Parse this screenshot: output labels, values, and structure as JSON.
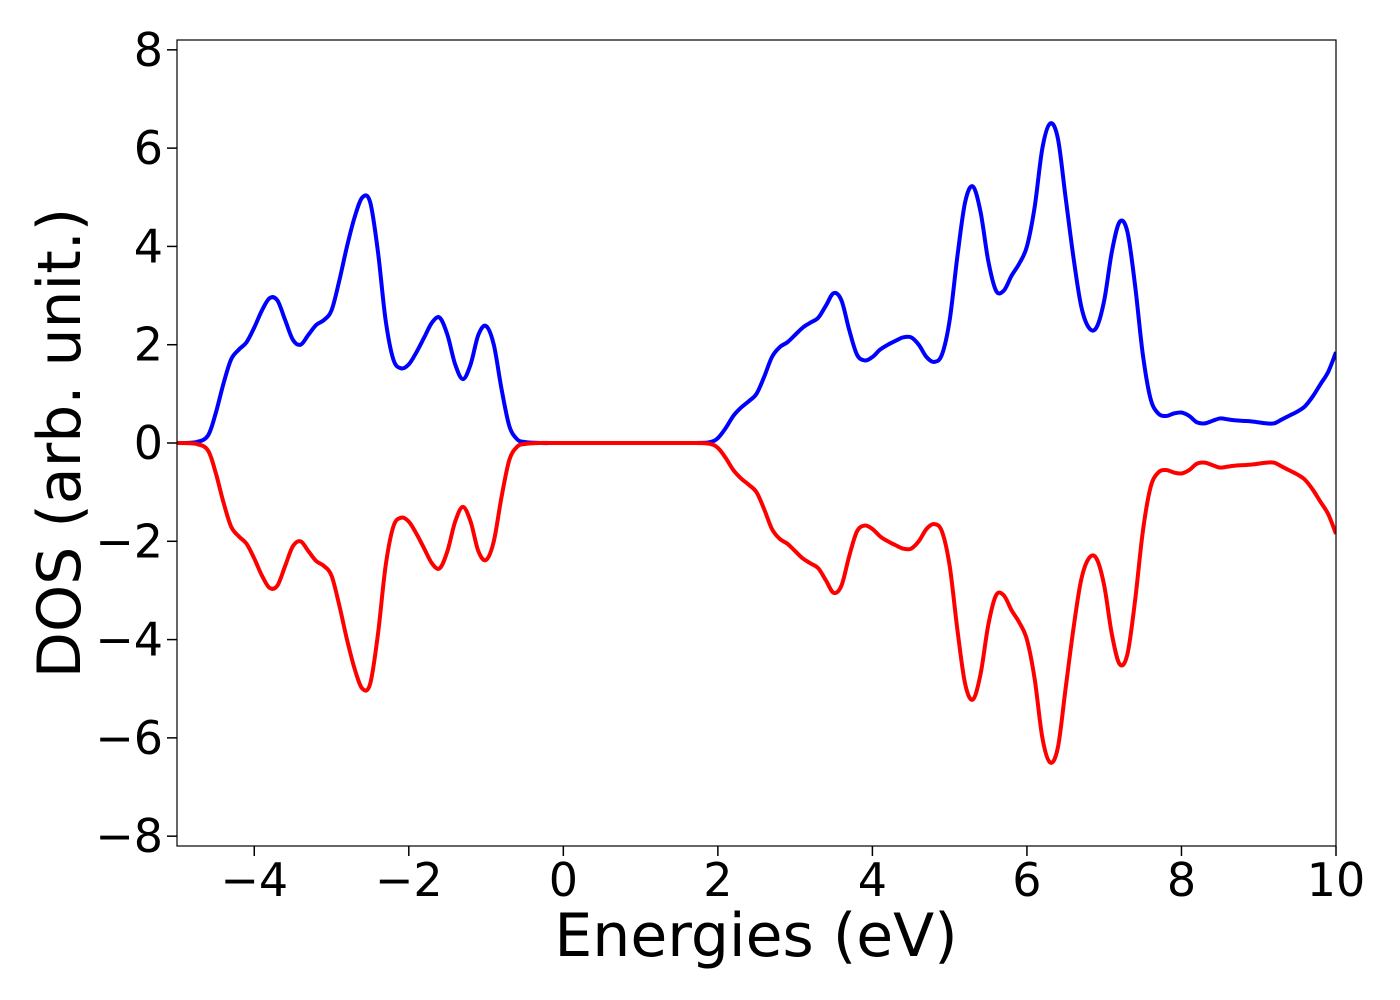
{
  "chart_data": {
    "type": "line",
    "title": "",
    "xlabel": "Energies (eV)",
    "ylabel": "DOS (arb. unit.)",
    "xlim": [
      -5,
      10
    ],
    "ylim": [
      -8.2,
      8.2
    ],
    "x_ticks": [
      -4,
      -2,
      0,
      2,
      4,
      6,
      8,
      10
    ],
    "x_tick_labels": [
      "−4",
      "−2",
      "0",
      "2",
      "4",
      "6",
      "8",
      "10"
    ],
    "y_ticks": [
      -8,
      -6,
      -4,
      -2,
      0,
      2,
      4,
      6,
      8
    ],
    "y_tick_labels": [
      "−8",
      "−6",
      "−4",
      "−2",
      "0",
      "2",
      "4",
      "6",
      "8"
    ],
    "grid": false,
    "legend": "none",
    "series": [
      {
        "color": "#0000ff",
        "points": [
          [
            -5.0,
            0.0
          ],
          [
            -4.75,
            0.02
          ],
          [
            -4.6,
            0.15
          ],
          [
            -4.5,
            0.6
          ],
          [
            -4.4,
            1.2
          ],
          [
            -4.3,
            1.7
          ],
          [
            -4.2,
            1.9
          ],
          [
            -4.1,
            2.05
          ],
          [
            -4.0,
            2.35
          ],
          [
            -3.9,
            2.7
          ],
          [
            -3.8,
            2.95
          ],
          [
            -3.7,
            2.9
          ],
          [
            -3.6,
            2.5
          ],
          [
            -3.5,
            2.1
          ],
          [
            -3.4,
            2.0
          ],
          [
            -3.3,
            2.2
          ],
          [
            -3.2,
            2.4
          ],
          [
            -3.1,
            2.5
          ],
          [
            -3.0,
            2.7
          ],
          [
            -2.9,
            3.3
          ],
          [
            -2.8,
            4.0
          ],
          [
            -2.7,
            4.6
          ],
          [
            -2.6,
            5.0
          ],
          [
            -2.5,
            4.9
          ],
          [
            -2.4,
            3.9
          ],
          [
            -2.3,
            2.5
          ],
          [
            -2.2,
            1.7
          ],
          [
            -2.1,
            1.52
          ],
          [
            -2.0,
            1.6
          ],
          [
            -1.9,
            1.85
          ],
          [
            -1.8,
            2.15
          ],
          [
            -1.7,
            2.45
          ],
          [
            -1.6,
            2.55
          ],
          [
            -1.5,
            2.2
          ],
          [
            -1.4,
            1.6
          ],
          [
            -1.3,
            1.3
          ],
          [
            -1.2,
            1.6
          ],
          [
            -1.1,
            2.2
          ],
          [
            -1.0,
            2.38
          ],
          [
            -0.9,
            2.0
          ],
          [
            -0.8,
            1.1
          ],
          [
            -0.7,
            0.35
          ],
          [
            -0.6,
            0.08
          ],
          [
            -0.5,
            0.02
          ],
          [
            -0.3,
            0.0
          ],
          [
            0.0,
            0.0
          ],
          [
            1.0,
            0.0
          ],
          [
            1.7,
            0.0
          ],
          [
            1.9,
            0.02
          ],
          [
            2.0,
            0.1
          ],
          [
            2.1,
            0.3
          ],
          [
            2.2,
            0.55
          ],
          [
            2.3,
            0.72
          ],
          [
            2.4,
            0.85
          ],
          [
            2.5,
            1.0
          ],
          [
            2.6,
            1.35
          ],
          [
            2.7,
            1.75
          ],
          [
            2.8,
            1.95
          ],
          [
            2.9,
            2.05
          ],
          [
            3.0,
            2.2
          ],
          [
            3.1,
            2.35
          ],
          [
            3.2,
            2.45
          ],
          [
            3.3,
            2.55
          ],
          [
            3.4,
            2.8
          ],
          [
            3.5,
            3.05
          ],
          [
            3.6,
            2.9
          ],
          [
            3.7,
            2.3
          ],
          [
            3.8,
            1.8
          ],
          [
            3.9,
            1.68
          ],
          [
            4.0,
            1.75
          ],
          [
            4.1,
            1.9
          ],
          [
            4.2,
            2.0
          ],
          [
            4.3,
            2.08
          ],
          [
            4.4,
            2.15
          ],
          [
            4.5,
            2.15
          ],
          [
            4.6,
            2.0
          ],
          [
            4.7,
            1.75
          ],
          [
            4.8,
            1.65
          ],
          [
            4.9,
            1.8
          ],
          [
            5.0,
            2.5
          ],
          [
            5.1,
            3.8
          ],
          [
            5.2,
            4.9
          ],
          [
            5.3,
            5.22
          ],
          [
            5.4,
            4.7
          ],
          [
            5.5,
            3.7
          ],
          [
            5.6,
            3.1
          ],
          [
            5.7,
            3.1
          ],
          [
            5.8,
            3.4
          ],
          [
            5.9,
            3.65
          ],
          [
            6.0,
            4.0
          ],
          [
            6.1,
            4.8
          ],
          [
            6.2,
            6.0
          ],
          [
            6.3,
            6.5
          ],
          [
            6.4,
            6.2
          ],
          [
            6.5,
            5.0
          ],
          [
            6.6,
            3.8
          ],
          [
            6.7,
            2.8
          ],
          [
            6.8,
            2.35
          ],
          [
            6.9,
            2.35
          ],
          [
            7.0,
            2.9
          ],
          [
            7.1,
            3.9
          ],
          [
            7.2,
            4.5
          ],
          [
            7.3,
            4.3
          ],
          [
            7.4,
            3.2
          ],
          [
            7.5,
            1.8
          ],
          [
            7.6,
            0.9
          ],
          [
            7.7,
            0.6
          ],
          [
            7.8,
            0.55
          ],
          [
            7.9,
            0.6
          ],
          [
            8.0,
            0.62
          ],
          [
            8.1,
            0.55
          ],
          [
            8.2,
            0.42
          ],
          [
            8.3,
            0.4
          ],
          [
            8.4,
            0.45
          ],
          [
            8.5,
            0.5
          ],
          [
            8.6,
            0.48
          ],
          [
            8.7,
            0.46
          ],
          [
            8.8,
            0.45
          ],
          [
            8.9,
            0.44
          ],
          [
            9.0,
            0.42
          ],
          [
            9.1,
            0.4
          ],
          [
            9.2,
            0.4
          ],
          [
            9.3,
            0.48
          ],
          [
            9.4,
            0.56
          ],
          [
            9.5,
            0.64
          ],
          [
            9.6,
            0.75
          ],
          [
            9.7,
            0.95
          ],
          [
            9.8,
            1.2
          ],
          [
            9.9,
            1.45
          ],
          [
            10.0,
            1.85
          ]
        ]
      },
      {
        "color": "#ff0000",
        "points": [
          [
            -5.0,
            0.0
          ],
          [
            -4.75,
            -0.02
          ],
          [
            -4.6,
            -0.15
          ],
          [
            -4.5,
            -0.6
          ],
          [
            -4.4,
            -1.2
          ],
          [
            -4.3,
            -1.7
          ],
          [
            -4.2,
            -1.9
          ],
          [
            -4.1,
            -2.05
          ],
          [
            -4.0,
            -2.35
          ],
          [
            -3.9,
            -2.7
          ],
          [
            -3.8,
            -2.95
          ],
          [
            -3.7,
            -2.9
          ],
          [
            -3.6,
            -2.5
          ],
          [
            -3.5,
            -2.1
          ],
          [
            -3.4,
            -2.0
          ],
          [
            -3.3,
            -2.2
          ],
          [
            -3.2,
            -2.4
          ],
          [
            -3.1,
            -2.5
          ],
          [
            -3.0,
            -2.7
          ],
          [
            -2.9,
            -3.3
          ],
          [
            -2.8,
            -4.0
          ],
          [
            -2.7,
            -4.6
          ],
          [
            -2.6,
            -5.0
          ],
          [
            -2.5,
            -4.9
          ],
          [
            -2.4,
            -3.9
          ],
          [
            -2.3,
            -2.5
          ],
          [
            -2.2,
            -1.7
          ],
          [
            -2.1,
            -1.52
          ],
          [
            -2.0,
            -1.6
          ],
          [
            -1.9,
            -1.85
          ],
          [
            -1.8,
            -2.15
          ],
          [
            -1.7,
            -2.45
          ],
          [
            -1.6,
            -2.55
          ],
          [
            -1.5,
            -2.2
          ],
          [
            -1.4,
            -1.6
          ],
          [
            -1.3,
            -1.3
          ],
          [
            -1.2,
            -1.6
          ],
          [
            -1.1,
            -2.2
          ],
          [
            -1.0,
            -2.38
          ],
          [
            -0.9,
            -2.0
          ],
          [
            -0.8,
            -1.1
          ],
          [
            -0.7,
            -0.35
          ],
          [
            -0.6,
            -0.08
          ],
          [
            -0.5,
            -0.02
          ],
          [
            -0.3,
            0.0
          ],
          [
            0.0,
            0.0
          ],
          [
            1.0,
            0.0
          ],
          [
            1.7,
            0.0
          ],
          [
            1.9,
            -0.02
          ],
          [
            2.0,
            -0.1
          ],
          [
            2.1,
            -0.3
          ],
          [
            2.2,
            -0.55
          ],
          [
            2.3,
            -0.72
          ],
          [
            2.4,
            -0.85
          ],
          [
            2.5,
            -1.0
          ],
          [
            2.6,
            -1.35
          ],
          [
            2.7,
            -1.75
          ],
          [
            2.8,
            -1.95
          ],
          [
            2.9,
            -2.05
          ],
          [
            3.0,
            -2.2
          ],
          [
            3.1,
            -2.35
          ],
          [
            3.2,
            -2.45
          ],
          [
            3.3,
            -2.55
          ],
          [
            3.4,
            -2.8
          ],
          [
            3.5,
            -3.05
          ],
          [
            3.6,
            -2.9
          ],
          [
            3.7,
            -2.3
          ],
          [
            3.8,
            -1.8
          ],
          [
            3.9,
            -1.68
          ],
          [
            4.0,
            -1.75
          ],
          [
            4.1,
            -1.9
          ],
          [
            4.2,
            -2.0
          ],
          [
            4.3,
            -2.08
          ],
          [
            4.4,
            -2.15
          ],
          [
            4.5,
            -2.15
          ],
          [
            4.6,
            -2.0
          ],
          [
            4.7,
            -1.75
          ],
          [
            4.8,
            -1.65
          ],
          [
            4.9,
            -1.8
          ],
          [
            5.0,
            -2.5
          ],
          [
            5.1,
            -3.8
          ],
          [
            5.2,
            -4.9
          ],
          [
            5.3,
            -5.22
          ],
          [
            5.4,
            -4.7
          ],
          [
            5.5,
            -3.7
          ],
          [
            5.6,
            -3.1
          ],
          [
            5.7,
            -3.1
          ],
          [
            5.8,
            -3.4
          ],
          [
            5.9,
            -3.65
          ],
          [
            6.0,
            -4.0
          ],
          [
            6.1,
            -4.8
          ],
          [
            6.2,
            -6.0
          ],
          [
            6.3,
            -6.5
          ],
          [
            6.4,
            -6.2
          ],
          [
            6.5,
            -5.0
          ],
          [
            6.6,
            -3.8
          ],
          [
            6.7,
            -2.8
          ],
          [
            6.8,
            -2.35
          ],
          [
            6.9,
            -2.35
          ],
          [
            7.0,
            -2.9
          ],
          [
            7.1,
            -3.9
          ],
          [
            7.2,
            -4.5
          ],
          [
            7.3,
            -4.3
          ],
          [
            7.4,
            -3.2
          ],
          [
            7.5,
            -1.8
          ],
          [
            7.6,
            -0.9
          ],
          [
            7.7,
            -0.6
          ],
          [
            7.8,
            -0.55
          ],
          [
            7.9,
            -0.6
          ],
          [
            8.0,
            -0.62
          ],
          [
            8.1,
            -0.55
          ],
          [
            8.2,
            -0.42
          ],
          [
            8.3,
            -0.4
          ],
          [
            8.4,
            -0.45
          ],
          [
            8.5,
            -0.5
          ],
          [
            8.6,
            -0.48
          ],
          [
            8.7,
            -0.46
          ],
          [
            8.8,
            -0.45
          ],
          [
            8.9,
            -0.44
          ],
          [
            9.0,
            -0.42
          ],
          [
            9.1,
            -0.4
          ],
          [
            9.2,
            -0.4
          ],
          [
            9.3,
            -0.48
          ],
          [
            9.4,
            -0.56
          ],
          [
            9.5,
            -0.64
          ],
          [
            9.6,
            -0.75
          ],
          [
            9.7,
            -0.95
          ],
          [
            9.8,
            -1.2
          ],
          [
            9.9,
            -1.45
          ],
          [
            10.0,
            -1.85
          ]
        ]
      }
    ]
  }
}
